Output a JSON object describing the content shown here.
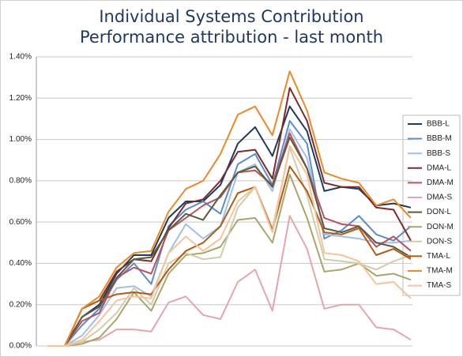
{
  "chart_data": {
    "type": "line",
    "title": "Individual Systems Contribution",
    "subtitle": "Performance attribution - last month",
    "categories": [
      null,
      null,
      null,
      null,
      null,
      null,
      null,
      null,
      null,
      null,
      null,
      null,
      null,
      null,
      null,
      null,
      null,
      null,
      null,
      null,
      null,
      null
    ],
    "ylim": [
      0,
      1.4
    ],
    "yticks": [
      {
        "value": 0,
        "label": "0.00%"
      },
      {
        "value": 0.2,
        "label": "0.20%"
      },
      {
        "value": 0.4,
        "label": "0.40%"
      },
      {
        "value": 0.6,
        "label": "0.60%"
      },
      {
        "value": 0.8,
        "label": "0.80%"
      },
      {
        "value": 1.0,
        "label": "1.00%"
      },
      {
        "value": 1.2,
        "label": "1.20%"
      },
      {
        "value": 1.4,
        "label": "1.40%"
      }
    ],
    "grid": true,
    "legend": "right",
    "series": [
      {
        "name": "BBB-L",
        "color": "#1f3a5f",
        "values": [
          0,
          0,
          0.14,
          0.2,
          0.35,
          0.44,
          0.44,
          0.62,
          0.7,
          0.7,
          0.78,
          0.98,
          1.06,
          0.92,
          1.16,
          1.04,
          0.75,
          0.77,
          0.76,
          0.68,
          0.69,
          0.67
        ]
      },
      {
        "name": "BBB-M",
        "color": "#5b8bd0",
        "values": [
          0,
          0,
          0.1,
          0.18,
          0.32,
          0.4,
          0.3,
          0.58,
          0.66,
          0.7,
          0.64,
          0.88,
          0.93,
          0.78,
          1.09,
          0.98,
          0.52,
          0.56,
          0.63,
          0.54,
          0.51,
          0.58
        ]
      },
      {
        "name": "BBB-S",
        "color": "#9fc0e8",
        "values": [
          0,
          0,
          0.05,
          0.15,
          0.28,
          0.29,
          0.24,
          0.45,
          0.59,
          0.52,
          0.58,
          0.84,
          0.88,
          0.75,
          1.05,
          0.91,
          0.54,
          0.53,
          0.52,
          0.5,
          0.5,
          0.51
        ]
      },
      {
        "name": "DMA-L",
        "color": "#7b2c2c",
        "values": [
          0,
          0,
          0.18,
          0.22,
          0.36,
          0.42,
          0.41,
          0.57,
          0.69,
          0.71,
          0.8,
          0.94,
          0.95,
          0.81,
          1.25,
          1.09,
          0.79,
          0.77,
          0.77,
          0.67,
          0.66,
          0.51
        ]
      },
      {
        "name": "DMA-M",
        "color": "#b5545c",
        "values": [
          0,
          0,
          0.12,
          0.16,
          0.33,
          0.38,
          0.35,
          0.56,
          0.62,
          0.68,
          0.72,
          0.84,
          0.85,
          0.78,
          1.03,
          0.86,
          0.62,
          0.59,
          0.58,
          0.48,
          0.53,
          0.46
        ]
      },
      {
        "name": "DMA-S",
        "color": "#e6a5ad",
        "values": [
          0,
          0,
          0.02,
          0.03,
          0.08,
          0.08,
          0.07,
          0.21,
          0.24,
          0.15,
          0.13,
          0.31,
          0.37,
          0.17,
          0.63,
          0.47,
          0.18,
          0.2,
          0.2,
          0.09,
          0.08,
          0.03
        ]
      },
      {
        "name": "DON-L",
        "color": "#5c5a3a",
        "values": [
          0,
          0,
          0.14,
          0.19,
          0.33,
          0.42,
          0.43,
          0.56,
          0.64,
          0.61,
          0.73,
          0.84,
          0.87,
          0.77,
          1.01,
          0.86,
          0.57,
          0.55,
          0.58,
          0.5,
          0.48,
          0.43
        ]
      },
      {
        "name": "DON-M",
        "color": "#a8a66a",
        "values": [
          0,
          0,
          0.01,
          0.04,
          0.13,
          0.26,
          0.17,
          0.35,
          0.44,
          0.45,
          0.48,
          0.61,
          0.62,
          0.5,
          0.83,
          0.62,
          0.36,
          0.37,
          0.4,
          0.34,
          0.35,
          0.32
        ]
      },
      {
        "name": "DON-S",
        "color": "#d0cdaa",
        "values": [
          0,
          0,
          0.02,
          0.08,
          0.16,
          0.28,
          0.2,
          0.4,
          0.45,
          0.42,
          0.43,
          0.67,
          0.77,
          0.57,
          0.96,
          0.73,
          0.42,
          0.41,
          0.4,
          0.37,
          0.41,
          0.44
        ]
      },
      {
        "name": "TMA-L",
        "color": "#b35a12",
        "values": [
          0,
          0,
          0.18,
          0.22,
          0.25,
          0.26,
          0.25,
          0.37,
          0.46,
          0.5,
          0.58,
          0.74,
          0.77,
          0.56,
          0.87,
          0.75,
          0.55,
          0.54,
          0.57,
          0.44,
          0.47,
          0.42
        ]
      },
      {
        "name": "TMA-M",
        "color": "#ea8a28",
        "values": [
          0,
          0,
          0.18,
          0.24,
          0.38,
          0.45,
          0.46,
          0.65,
          0.76,
          0.8,
          0.93,
          1.12,
          1.16,
          1.02,
          1.33,
          1.14,
          0.84,
          0.81,
          0.79,
          0.68,
          0.71,
          0.62
        ]
      },
      {
        "name": "TMA-S",
        "color": "#f5c49a",
        "values": [
          0,
          0,
          0.03,
          0.12,
          0.22,
          0.24,
          0.23,
          0.45,
          0.53,
          0.46,
          0.52,
          0.7,
          0.77,
          0.55,
          0.97,
          0.83,
          0.45,
          0.44,
          0.41,
          0.3,
          0.31,
          0.23
        ]
      }
    ]
  }
}
